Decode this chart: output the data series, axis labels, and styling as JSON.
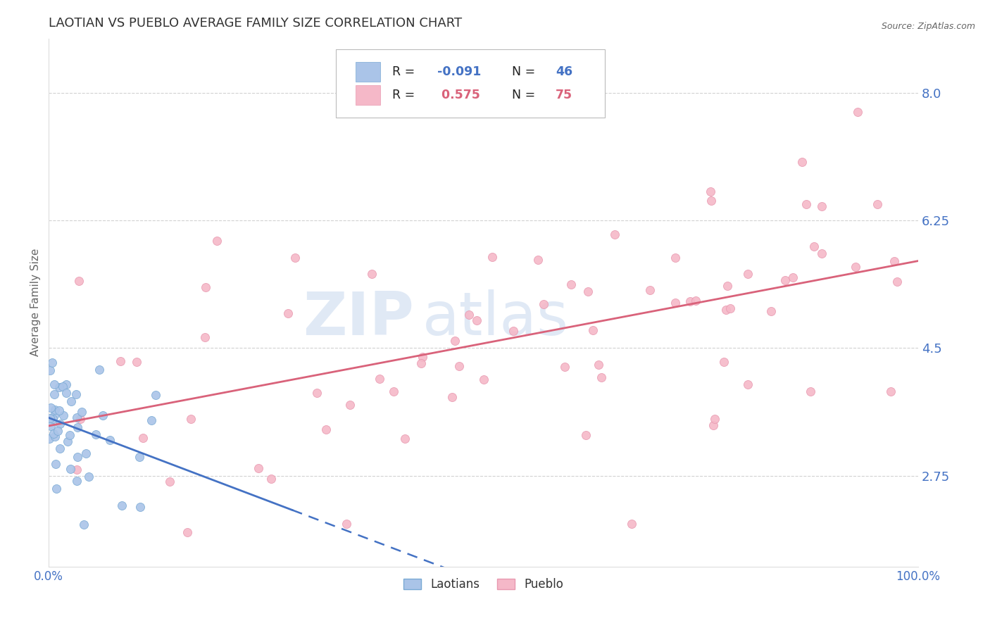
{
  "title": "LAOTIAN VS PUEBLO AVERAGE FAMILY SIZE CORRELATION CHART",
  "source": "Source: ZipAtlas.com",
  "ylabel": "Average Family Size",
  "xlim": [
    0,
    1
  ],
  "ylim": [
    1.5,
    8.75
  ],
  "yticks": [
    2.75,
    4.5,
    6.25,
    8.0
  ],
  "xticks": [
    0,
    1
  ],
  "xtick_labels": [
    "0.0%",
    "100.0%"
  ],
  "title_color": "#333333",
  "title_fontsize": 13,
  "axis_label_color": "#666666",
  "ytick_color": "#4472C4",
  "xtick_color": "#4472C4",
  "background_color": "#ffffff",
  "grid_color": "#cccccc",
  "laotian_color": "#aac4e8",
  "laotian_edge_color": "#7aaad4",
  "pueblo_color": "#f5b8c8",
  "pueblo_edge_color": "#e899b0",
  "laotian_R": -0.091,
  "laotian_N": 46,
  "pueblo_R": 0.575,
  "pueblo_N": 75,
  "laotian_line_color": "#4472C4",
  "pueblo_line_color": "#d9627a",
  "laotian_seed": 42,
  "pueblo_seed": 7,
  "leg_R1_val": "-0.091",
  "leg_R2_val": " 0.575",
  "leg_N1_val": "46",
  "leg_N2_val": "75"
}
